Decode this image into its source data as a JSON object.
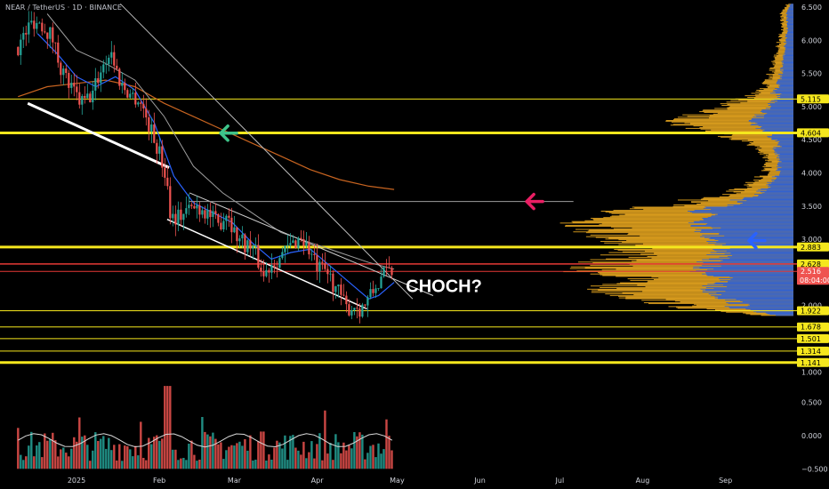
{
  "header": {
    "ticker_text": "NEAR / TetherUS · 1D · BINANCE"
  },
  "colors": {
    "background": "#000000",
    "up_candle": "#26a69a",
    "down_candle": "#ef5350",
    "level_yellow": "#f5e71d",
    "level_red": "#e53935",
    "ema_blue": "#2962ff",
    "ma_gray": "#9e9e9e",
    "ma_orange": "#c86420",
    "profile_gold": "#e3a31f",
    "profile_blue": "#2a5fd9",
    "arrow_green": "#3ec48a",
    "arrow_pink": "#e91e63",
    "arrow_blue": "#2962ff",
    "badge_last": "#ef5350"
  },
  "chart_data": {
    "type": "candlestick",
    "price_axis_ticks": [
      "6.500",
      "6.000",
      "5.500",
      "5.000",
      "4.500",
      "4.000",
      "3.500",
      "3.000",
      "2.500",
      "2.000",
      "1.500",
      "1.000"
    ],
    "volume_axis_ticks": [
      "0.500",
      "0.000",
      "−0.500"
    ],
    "x_axis_labels": [
      {
        "label": "2025",
        "t": 2025.0
      },
      {
        "label": "Feb",
        "t": 2025.085
      },
      {
        "label": "Mar",
        "t": 2025.162
      },
      {
        "label": "Apr",
        "t": 2025.247
      },
      {
        "label": "May",
        "t": 2025.329
      },
      {
        "label": "Jun",
        "t": 2025.414
      },
      {
        "label": "Jul",
        "t": 2025.496
      },
      {
        "label": "Aug",
        "t": 2025.581
      },
      {
        "label": "Sep",
        "t": 2025.666
      }
    ],
    "price_path": [
      [
        2024.94,
        5.9
      ],
      [
        2024.955,
        6.3
      ],
      [
        2024.965,
        6.25
      ],
      [
        2024.975,
        6.05
      ],
      [
        2024.985,
        5.55
      ],
      [
        2024.995,
        5.25
      ],
      [
        2025.005,
        5.05
      ],
      [
        2025.015,
        5.15
      ],
      [
        2025.025,
        5.55
      ],
      [
        2025.035,
        5.85
      ],
      [
        2025.045,
        5.35
      ],
      [
        2025.055,
        5.2
      ],
      [
        2025.065,
        5.1
      ],
      [
        2025.075,
        4.7
      ],
      [
        2025.085,
        4.3
      ],
      [
        2025.092,
        3.95
      ],
      [
        2025.097,
        3.35
      ],
      [
        2025.105,
        3.35
      ],
      [
        2025.115,
        3.45
      ],
      [
        2025.125,
        3.5
      ],
      [
        2025.135,
        3.4
      ],
      [
        2025.145,
        3.2
      ],
      [
        2025.155,
        3.45
      ],
      [
        2025.162,
        3.1
      ],
      [
        2025.172,
        2.95
      ],
      [
        2025.182,
        2.85
      ],
      [
        2025.192,
        2.45
      ],
      [
        2025.2,
        2.65
      ],
      [
        2025.21,
        2.75
      ],
      [
        2025.22,
        2.9
      ],
      [
        2025.23,
        3.05
      ],
      [
        2025.24,
        2.8
      ],
      [
        2025.247,
        2.55
      ],
      [
        2025.257,
        2.5
      ],
      [
        2025.267,
        2.25
      ],
      [
        2025.277,
        1.95
      ],
      [
        2025.285,
        2.0
      ],
      [
        2025.292,
        1.95
      ],
      [
        2025.3,
        2.1
      ],
      [
        2025.31,
        2.35
      ],
      [
        2025.32,
        2.55
      ],
      [
        2025.326,
        2.52
      ]
    ],
    "lines": {
      "ema_blue": [
        [
          2024.96,
          6.1
        ],
        [
          2024.98,
          5.8
        ],
        [
          2025.0,
          5.45
        ],
        [
          2025.02,
          5.3
        ],
        [
          2025.04,
          5.45
        ],
        [
          2025.06,
          5.25
        ],
        [
          2025.08,
          4.75
        ],
        [
          2025.1,
          3.95
        ],
        [
          2025.12,
          3.55
        ],
        [
          2025.14,
          3.4
        ],
        [
          2025.16,
          3.25
        ],
        [
          2025.18,
          2.95
        ],
        [
          2025.2,
          2.7
        ],
        [
          2025.22,
          2.8
        ],
        [
          2025.24,
          2.85
        ],
        [
          2025.26,
          2.6
        ],
        [
          2025.28,
          2.35
        ],
        [
          2025.3,
          2.1
        ],
        [
          2025.31,
          2.15
        ],
        [
          2025.326,
          2.35
        ]
      ],
      "ma_gray": [
        [
          2024.97,
          6.4
        ],
        [
          2025.0,
          5.85
        ],
        [
          2025.03,
          5.65
        ],
        [
          2025.06,
          5.4
        ],
        [
          2025.09,
          4.85
        ],
        [
          2025.12,
          4.1
        ],
        [
          2025.15,
          3.7
        ],
        [
          2025.18,
          3.4
        ],
        [
          2025.21,
          3.1
        ],
        [
          2025.24,
          2.95
        ],
        [
          2025.27,
          2.8
        ],
        [
          2025.3,
          2.65
        ],
        [
          2025.326,
          2.55
        ]
      ],
      "ma_orange": [
        [
          2024.94,
          5.15
        ],
        [
          2024.97,
          5.3
        ],
        [
          2025.0,
          5.35
        ],
        [
          2025.03,
          5.4
        ],
        [
          2025.06,
          5.3
        ],
        [
          2025.09,
          5.05
        ],
        [
          2025.12,
          4.85
        ],
        [
          2025.15,
          4.65
        ],
        [
          2025.18,
          4.45
        ],
        [
          2025.21,
          4.25
        ],
        [
          2025.24,
          4.05
        ],
        [
          2025.27,
          3.9
        ],
        [
          2025.3,
          3.8
        ],
        [
          2025.326,
          3.75
        ]
      ],
      "upper_trend": [
        [
          2025.045,
          6.55
        ],
        [
          2025.345,
          2.1
        ]
      ],
      "trend_white_1": [
        [
          2024.95,
          5.05
        ],
        [
          2025.095,
          4.08
        ]
      ],
      "trend_white_2": [
        [
          2025.093,
          3.3
        ],
        [
          2025.298,
          1.95
        ]
      ],
      "trend_gray_3": [
        [
          2025.116,
          3.7
        ],
        [
          2025.366,
          2.15
        ]
      ],
      "resistance_ray": [
        [
          2025.115,
          3.57
        ],
        [
          2025.51,
          3.57
        ]
      ]
    },
    "horizontal_levels": [
      {
        "price": 5.115,
        "color": "level_yellow",
        "width": 1
      },
      {
        "price": 4.604,
        "color": "level_yellow",
        "width": 3
      },
      {
        "price": 2.883,
        "color": "level_yellow",
        "width": 3
      },
      {
        "price": 2.628,
        "color": "level_red",
        "width": 1.5
      },
      {
        "price": 2.516,
        "color": "level_red",
        "width": 1
      },
      {
        "price": 1.922,
        "color": "level_yellow",
        "width": 1
      },
      {
        "price": 1.678,
        "color": "level_yellow",
        "width": 1
      },
      {
        "price": 1.501,
        "color": "level_yellow",
        "width": 1
      },
      {
        "price": 1.314,
        "color": "level_yellow",
        "width": 1
      },
      {
        "price": 1.141,
        "color": "level_yellow",
        "width": 3
      }
    ],
    "price_badges": [
      {
        "text": "5.115",
        "price": 5.115,
        "bg": "#f5e71d",
        "fg": "#000000"
      },
      {
        "text": "4.604",
        "price": 4.604,
        "bg": "#f5e71d",
        "fg": "#000000"
      },
      {
        "text": "2.883",
        "price": 2.883,
        "bg": "#f5e71d",
        "fg": "#000000"
      },
      {
        "text": "2.628",
        "price": 2.628,
        "bg": "#f5e71d",
        "fg": "#000000"
      },
      {
        "text": "2.516",
        "price": 2.516,
        "bg": "#ef5350",
        "fg": "#ffffff"
      },
      {
        "text": "1.922",
        "price": 1.922,
        "bg": "#f5e71d",
        "fg": "#000000"
      },
      {
        "text": "1.678",
        "price": 1.678,
        "bg": "#f5e71d",
        "fg": "#000000"
      },
      {
        "text": "1.501",
        "price": 1.501,
        "bg": "#f5e71d",
        "fg": "#000000"
      },
      {
        "text": "1.314",
        "price": 1.314,
        "bg": "#f5e71d",
        "fg": "#000000"
      },
      {
        "text": "1.141",
        "price": 1.141,
        "bg": "#f5e71d",
        "fg": "#000000"
      }
    ],
    "countdown": "08:04:00",
    "annotations": [
      {
        "text": "CHOCH?",
        "t": 2025.338,
        "price": 2.3
      }
    ],
    "arrows": [
      {
        "t": 2025.148,
        "price": 4.6,
        "direction": "left",
        "color": "arrow_green"
      },
      {
        "t": 2025.462,
        "price": 3.57,
        "direction": "left",
        "color": "arrow_pink"
      },
      {
        "t": 2025.69,
        "price": 2.98,
        "direction": "left",
        "color": "arrow_blue"
      }
    ],
    "volume_profile_peaks": [
      [
        6.55,
        0.03
      ],
      [
        6.4,
        0.06
      ],
      [
        6.2,
        0.05
      ],
      [
        6.0,
        0.07
      ],
      [
        5.8,
        0.08
      ],
      [
        5.6,
        0.1
      ],
      [
        5.4,
        0.12
      ],
      [
        5.2,
        0.18
      ],
      [
        5.05,
        0.3
      ],
      [
        4.9,
        0.45
      ],
      [
        4.75,
        0.55
      ],
      [
        4.6,
        0.35
      ],
      [
        4.45,
        0.2
      ],
      [
        4.3,
        0.15
      ],
      [
        4.15,
        0.12
      ],
      [
        4.0,
        0.14
      ],
      [
        3.85,
        0.2
      ],
      [
        3.7,
        0.3
      ],
      [
        3.55,
        0.55
      ],
      [
        3.4,
        0.85
      ],
      [
        3.25,
        0.95
      ],
      [
        3.1,
        0.9
      ],
      [
        2.95,
        0.8
      ],
      [
        2.85,
        0.75
      ],
      [
        2.7,
        0.85
      ],
      [
        2.55,
        1.0
      ],
      [
        2.4,
        0.75
      ],
      [
        2.25,
        0.9
      ],
      [
        2.1,
        0.7
      ],
      [
        1.95,
        0.45
      ],
      [
        1.85,
        0.15
      ]
    ]
  }
}
